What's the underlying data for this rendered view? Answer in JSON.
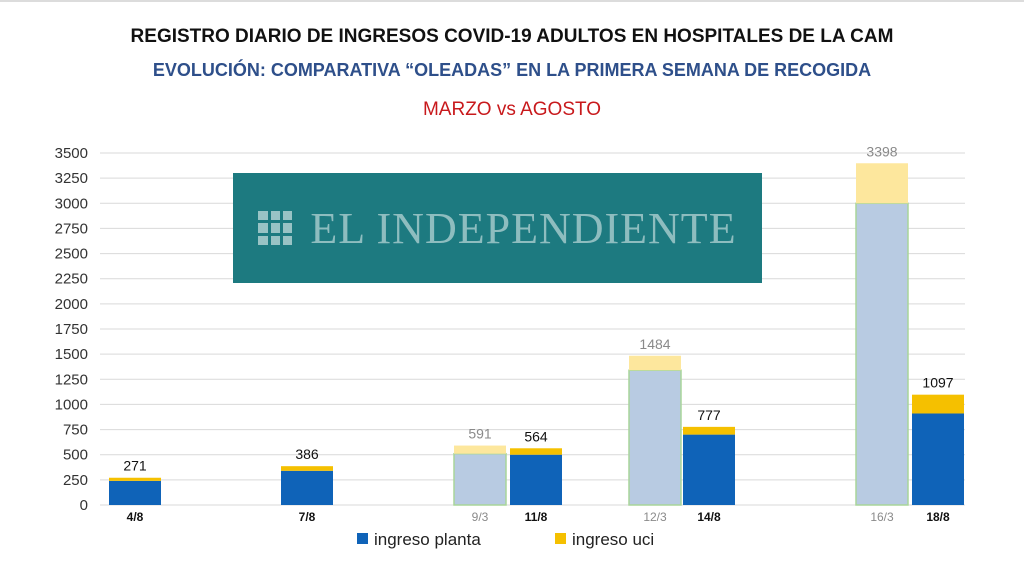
{
  "title": "REGISTRO DIARIO DE INGRESOS COVID-19 ADULTOS  EN HOSPITALES DE LA CAM",
  "subtitle": "EVOLUCIÓN: COMPARATIVA “OLEADAS” EN LA PRIMERA SEMANA DE RECOGIDA",
  "subtitle2": "MARZO vs AGOSTO",
  "watermark": {
    "text": "EL INDEPENDIENTE",
    "icon": "grid-logo-icon"
  },
  "colors": {
    "planta_agosto": "#0f63b8",
    "uci_agosto": "#f5c000",
    "planta_marzo": "#b8cbe2",
    "uci_marzo": "#fde79d",
    "marzo_outline": "#a9d59a"
  },
  "chart_data": {
    "type": "bar",
    "stacked": true,
    "ylim": [
      0,
      3500
    ],
    "yticks": [
      "0",
      "250",
      "500",
      "750",
      "1000",
      "1250",
      "1500",
      "1750",
      "2000",
      "2250",
      "2500",
      "2750",
      "3000",
      "3250",
      "3500"
    ],
    "grid": true,
    "legend_position": "bottom",
    "legend": [
      {
        "label": "ingreso planta",
        "color": "#0f63b8"
      },
      {
        "label": "ingreso uci",
        "color": "#f5c000"
      }
    ],
    "bars": [
      {
        "label": "4/8",
        "planta": 240,
        "uci": 31,
        "total": "271",
        "period": "agosto"
      },
      {
        "label": "7/8",
        "planta": 340,
        "uci": 46,
        "total": "386",
        "period": "agosto"
      },
      {
        "label": "9/3",
        "planta": 510,
        "uci": 81,
        "total": "591",
        "period": "marzo"
      },
      {
        "label": "11/8",
        "planta": 500,
        "uci": 64,
        "total": "564",
        "period": "agosto"
      },
      {
        "label": "12/3",
        "planta": 1340,
        "uci": 144,
        "total": "1484",
        "period": "marzo"
      },
      {
        "label": "14/8",
        "planta": 700,
        "uci": 77,
        "total": "777",
        "period": "agosto"
      },
      {
        "label": "16/3",
        "planta": 3000,
        "uci": 398,
        "total": "3398",
        "period": "marzo"
      },
      {
        "label": "18/8",
        "planta": 910,
        "uci": 187,
        "total": "1097",
        "period": "agosto"
      }
    ]
  }
}
